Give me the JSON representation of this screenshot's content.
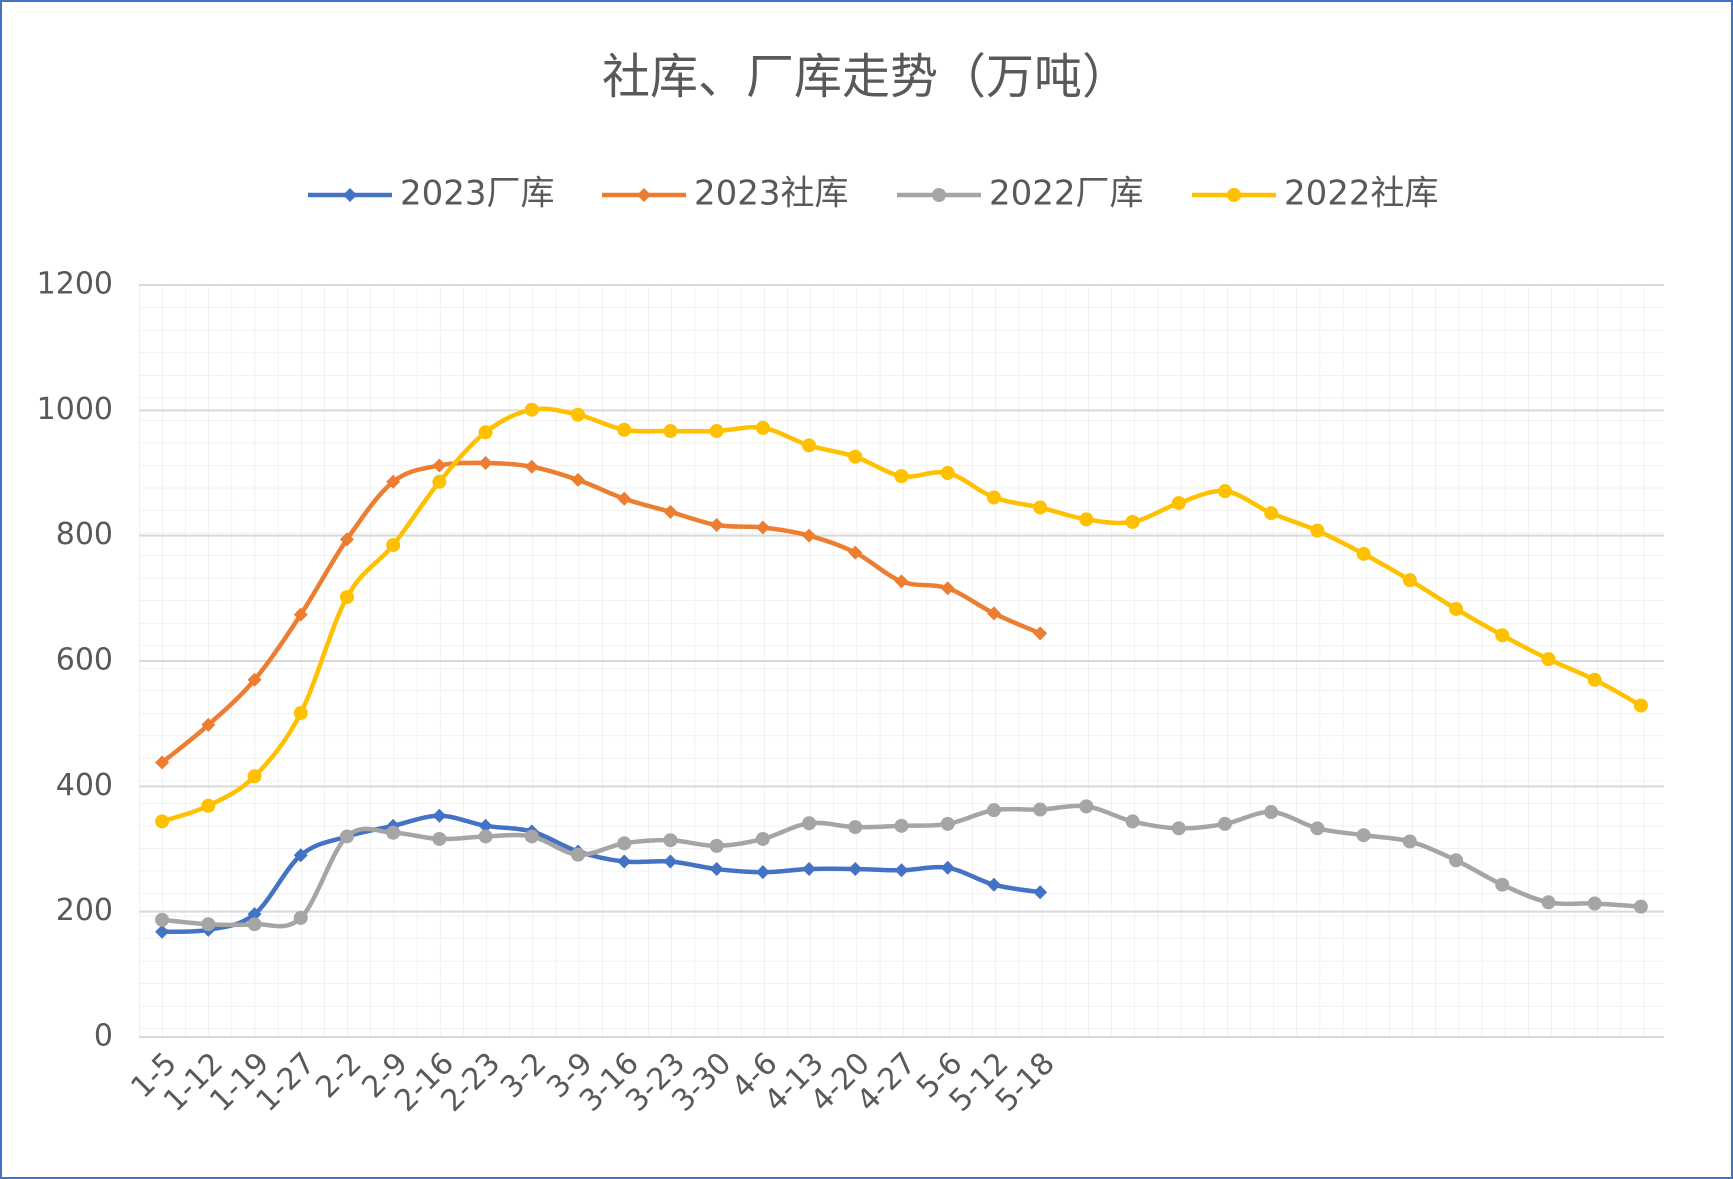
{
  "chart_data": {
    "type": "line",
    "title": "社库、厂库走势（万吨）",
    "categories": [
      "1-5",
      "1-12",
      "1-19",
      "1-27",
      "2-2",
      "2-9",
      "2-16",
      "2-23",
      "3-2",
      "3-9",
      "3-16",
      "3-23",
      "3-30",
      "4-6",
      "4-13",
      "4-20",
      "4-27",
      "5-6",
      "5-12",
      "5-18",
      null,
      null,
      null,
      null,
      null,
      null,
      null,
      null,
      null,
      null,
      null,
      null,
      null
    ],
    "series": [
      {
        "name": "2023厂库",
        "color": "#4472c4",
        "marker": "diamond",
        "values": [
          168,
          171,
          196,
          290,
          320,
          337,
          353,
          337,
          328,
          296,
          280,
          280,
          268,
          263,
          268,
          268,
          266,
          270,
          243,
          231,
          null,
          null,
          null,
          null,
          null,
          null,
          null,
          null,
          null,
          null,
          null,
          null,
          null
        ]
      },
      {
        "name": "2023社库",
        "color": "#ed7d31",
        "marker": "diamond",
        "values": [
          438,
          498,
          570,
          674,
          794,
          886,
          912,
          916,
          910,
          889,
          859,
          838,
          817,
          813,
          800,
          773,
          727,
          716,
          676,
          644,
          null,
          null,
          null,
          null,
          null,
          null,
          null,
          null,
          null,
          null,
          null,
          null,
          null
        ]
      },
      {
        "name": "2022厂库",
        "color": "#a5a5a5",
        "marker": "circle",
        "values": [
          187,
          180,
          180,
          190,
          320,
          326,
          316,
          320,
          320,
          291,
          309,
          314,
          305,
          316,
          341,
          335,
          337,
          340,
          362,
          363,
          368,
          344,
          333,
          340,
          359,
          333,
          322,
          312,
          282,
          243,
          215,
          213,
          208
        ]
      },
      {
        "name": "2022社库",
        "color": "#ffc000",
        "marker": "circle",
        "values": [
          344,
          369,
          416,
          517,
          702,
          785,
          886,
          965,
          1001,
          993,
          969,
          967,
          967,
          972,
          944,
          926,
          895,
          900,
          861,
          845,
          826,
          822,
          852,
          871,
          836,
          808,
          771,
          729,
          683,
          641,
          603,
          570,
          529
        ]
      }
    ],
    "ylim": [
      0,
      1200
    ],
    "yticks": [
      0,
      200,
      400,
      600,
      800,
      1000,
      1200
    ],
    "grid": true,
    "smooth": true,
    "legend": "top"
  }
}
